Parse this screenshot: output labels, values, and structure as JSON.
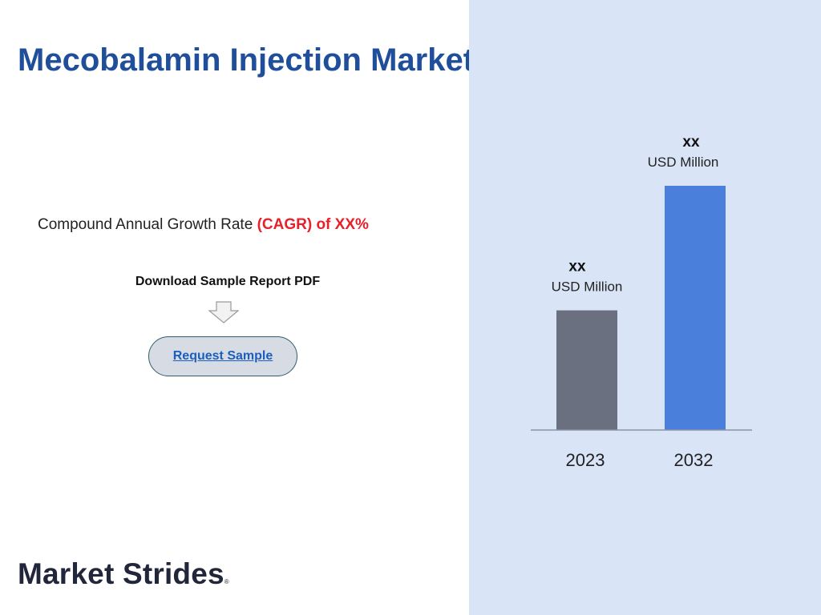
{
  "title": "Mecobalamin Injection Market",
  "cagr": {
    "prefix": "Compound Annual Growth Rate ",
    "highlight": "(CAGR) of XX%"
  },
  "download_label": "Download Sample Report PDF",
  "request_button": "Request Sample",
  "brand": "Market Strides",
  "brand_mark": "®",
  "colors": {
    "title": "#1f4e9a",
    "highlight": "#e8202a",
    "panel": "#d9e4f7",
    "bar_2023": "#6b7080",
    "bar_2032": "#4a7fdc"
  },
  "chart_data": {
    "type": "bar",
    "categories": [
      "2023",
      "2032"
    ],
    "value_labels": [
      {
        "value": "XX",
        "unit": "USD Million"
      },
      {
        "value": "XX",
        "unit": "USD Million"
      }
    ],
    "relative_heights": [
      0.49,
      1.0
    ],
    "title": "",
    "xlabel": "",
    "ylabel": "",
    "grid": false,
    "legend": "none"
  }
}
